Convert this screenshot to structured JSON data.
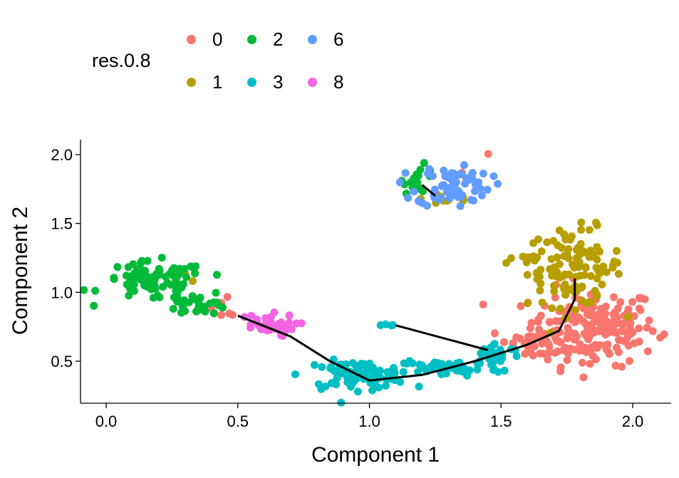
{
  "chart_data": {
    "type": "scatter",
    "title": "",
    "xlabel": "Component 1",
    "ylabel": "Component 2",
    "xlim": [
      -0.1,
      2.15
    ],
    "ylim": [
      0.22,
      2.1
    ],
    "x_ticks": [
      "0.0",
      "0.5",
      "1.0",
      "1.5",
      "2.0"
    ],
    "y_ticks": [
      "0.5",
      "1.0",
      "1.5",
      "2.0"
    ],
    "grid": false,
    "legend": {
      "title": "res.0.8",
      "placement": "top-left",
      "entries": [
        {
          "label": "0",
          "color": "#F8766D"
        },
        {
          "label": "2",
          "color": "#00BA38"
        },
        {
          "label": "6",
          "color": "#619CFF"
        },
        {
          "label": "1",
          "color": "#B79F00"
        },
        {
          "label": "3",
          "color": "#00BFC4"
        },
        {
          "label": "8",
          "color": "#F564E3"
        }
      ]
    },
    "series": [
      {
        "name": "0",
        "color": "#F8766D",
        "clusters": [
          {
            "cx": 1.85,
            "cy": 0.75,
            "sx": 0.12,
            "sy": 0.14,
            "n": 190
          },
          {
            "cx": 1.62,
            "cy": 0.62,
            "sx": 0.08,
            "sy": 0.07,
            "n": 40
          },
          {
            "cx": 0.45,
            "cy": 0.88,
            "sx": 0.06,
            "sy": 0.05,
            "n": 6
          },
          {
            "cx": 1.39,
            "cy": 1.9,
            "sx": 0.03,
            "sy": 0.06,
            "n": 3
          }
        ]
      },
      {
        "name": "1",
        "color": "#B79F00",
        "clusters": [
          {
            "cx": 1.78,
            "cy": 1.18,
            "sx": 0.09,
            "sy": 0.14,
            "n": 110
          },
          {
            "cx": 1.6,
            "cy": 1.25,
            "sx": 0.03,
            "sy": 0.03,
            "n": 10
          },
          {
            "cx": 1.3,
            "cy": 1.68,
            "sx": 0.05,
            "sy": 0.03,
            "n": 10
          },
          {
            "cx": 0.3,
            "cy": 1.1,
            "sx": 0.03,
            "sy": 0.03,
            "n": 3
          }
        ]
      },
      {
        "name": "2",
        "color": "#00BA38",
        "clusters": [
          {
            "cx": 0.18,
            "cy": 1.08,
            "sx": 0.1,
            "sy": 0.07,
            "n": 80
          },
          {
            "cx": 0.35,
            "cy": 0.92,
            "sx": 0.06,
            "sy": 0.04,
            "n": 30
          },
          {
            "cx": 1.19,
            "cy": 1.82,
            "sx": 0.03,
            "sy": 0.05,
            "n": 18
          }
        ]
      },
      {
        "name": "3",
        "color": "#00BFC4",
        "clusters": [
          {
            "cx": 0.95,
            "cy": 0.4,
            "sx": 0.1,
            "sy": 0.05,
            "n": 90
          },
          {
            "cx": 1.3,
            "cy": 0.45,
            "sx": 0.1,
            "sy": 0.03,
            "n": 55
          },
          {
            "cx": 1.48,
            "cy": 0.55,
            "sx": 0.05,
            "sy": 0.04,
            "n": 30
          },
          {
            "cx": 1.08,
            "cy": 0.76,
            "sx": 0.02,
            "sy": 0.01,
            "n": 4
          }
        ]
      },
      {
        "name": "6",
        "color": "#619CFF",
        "clusters": [
          {
            "cx": 1.32,
            "cy": 1.78,
            "sx": 0.07,
            "sy": 0.08,
            "n": 70
          }
        ]
      },
      {
        "name": "8",
        "color": "#F564E3",
        "clusters": [
          {
            "cx": 0.6,
            "cy": 0.76,
            "sx": 0.06,
            "sy": 0.04,
            "n": 35
          }
        ]
      }
    ],
    "trajectory": [
      [
        [
          0.5,
          0.83
        ],
        [
          0.7,
          0.68
        ],
        [
          0.85,
          0.5
        ],
        [
          1.0,
          0.36
        ],
        [
          1.2,
          0.4
        ],
        [
          1.4,
          0.5
        ],
        [
          1.6,
          0.62
        ],
        [
          1.72,
          0.72
        ],
        [
          1.78,
          0.95
        ],
        [
          1.78,
          1.1
        ]
      ],
      [
        [
          1.1,
          0.76
        ],
        [
          1.45,
          0.58
        ]
      ],
      [
        [
          1.2,
          1.78
        ],
        [
          1.25,
          1.7
        ]
      ]
    ]
  }
}
